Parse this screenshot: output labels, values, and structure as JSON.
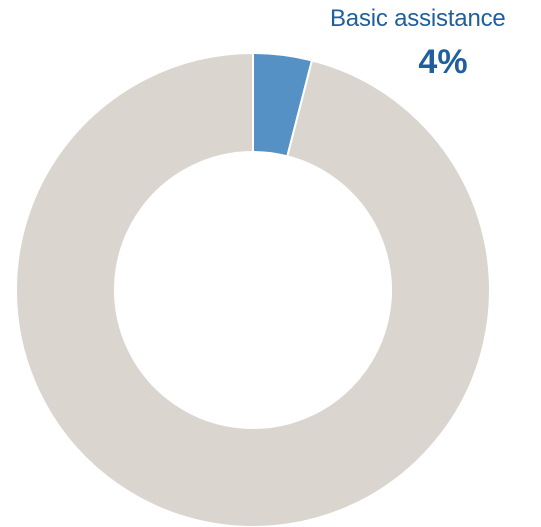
{
  "chart_data": {
    "type": "pie",
    "variant": "donut",
    "categories": [
      "Basic assistance",
      ""
    ],
    "values": [
      4,
      96
    ],
    "colors": [
      "#5591c4",
      "#dad5cf"
    ],
    "labels": [
      {
        "category": "Basic assistance",
        "text": "Basic assistance",
        "value_text": "4%"
      }
    ]
  },
  "theme": {
    "label_color": "#1f5f9e",
    "separator_color": "#ffffff"
  }
}
